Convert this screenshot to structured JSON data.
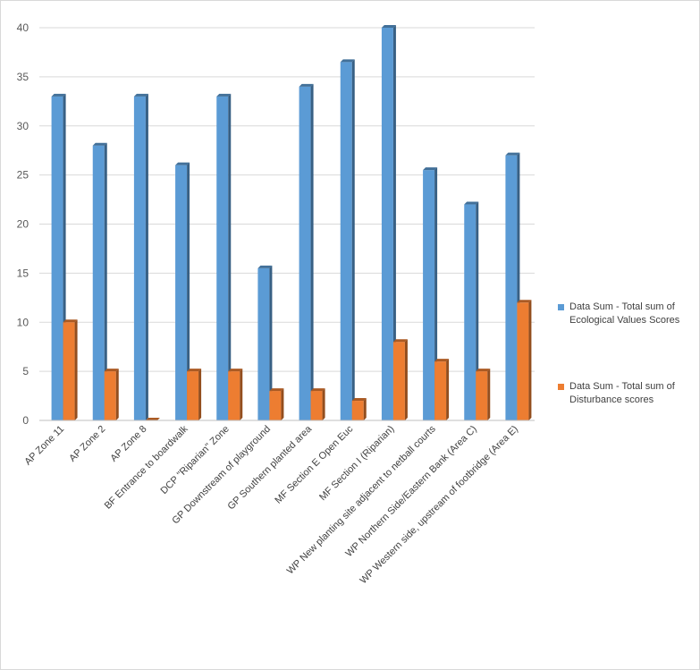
{
  "chart_data": {
    "type": "bar",
    "title": "",
    "xlabel": "",
    "ylabel": "",
    "ylim": [
      0,
      40
    ],
    "yticks": [
      0,
      5,
      10,
      15,
      20,
      25,
      30,
      35,
      40
    ],
    "grid": true,
    "legend_position": "right",
    "categories": [
      "AP Zone 11",
      "AP Zone 2",
      "AP Zone 8",
      "BF Entrance to boardwalk",
      "DCP \"Riparian\" Zone",
      "GP Downstream of playground",
      "GP Southern planted area",
      "MF Section E Open Euc",
      "MF Section I (Riparian)",
      "WP New planting site adjacent to netball courts",
      "WP Northern Side/Eastern Bank (Area C)",
      "WP Western side, upstream of footbridge (Area E)"
    ],
    "series": [
      {
        "name": "Data Sum - Total sum of Ecological Values Scores",
        "color": "#5b9bd5",
        "values": [
          33,
          28,
          33,
          26,
          33,
          15.5,
          34,
          36.5,
          40,
          25.5,
          22,
          27
        ]
      },
      {
        "name": "Data Sum - Total sum of Disturbance scores",
        "color": "#ed7d31",
        "values": [
          10,
          5,
          0,
          5,
          5,
          3,
          3,
          2,
          8,
          6,
          5,
          12
        ]
      }
    ]
  }
}
